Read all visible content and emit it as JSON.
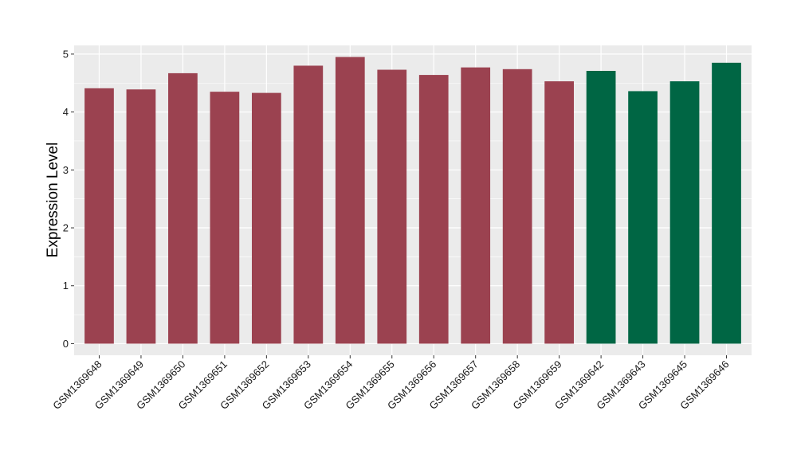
{
  "chart_data": {
    "type": "bar",
    "title": "",
    "xlabel": "",
    "ylabel": "Expression Level",
    "ylim": [
      -0.2,
      5.15
    ],
    "yticks": [
      0,
      1,
      2,
      3,
      4,
      5
    ],
    "grid": true,
    "legend": "none",
    "categories": [
      "GSM1369648",
      "GSM1369649",
      "GSM1369650",
      "GSM1369651",
      "GSM1369652",
      "GSM1369653",
      "GSM1369654",
      "GSM1369655",
      "GSM1369656",
      "GSM1369657",
      "GSM1369658",
      "GSM1369659",
      "GSM1369642",
      "GSM1369643",
      "GSM1369645",
      "GSM1369646"
    ],
    "values": [
      4.41,
      4.39,
      4.67,
      4.35,
      4.33,
      4.8,
      4.95,
      4.73,
      4.64,
      4.77,
      4.74,
      4.53,
      4.71,
      4.36,
      4.53,
      4.85
    ],
    "groups": [
      "a",
      "a",
      "a",
      "a",
      "a",
      "a",
      "a",
      "a",
      "a",
      "a",
      "a",
      "a",
      "b",
      "b",
      "b",
      "b"
    ],
    "colors": {
      "a": "#9b4250",
      "b": "#006644",
      "panel": "#ebebeb",
      "grid": "#ffffff"
    }
  }
}
